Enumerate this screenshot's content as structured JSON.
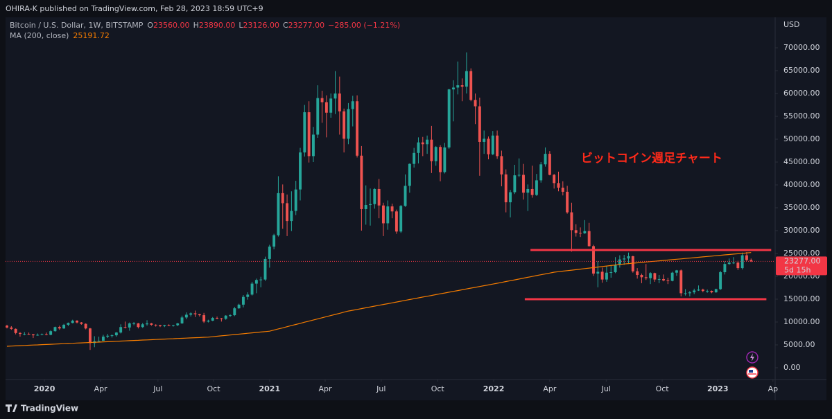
{
  "page": {
    "byline": "OHIRA-K published on TradingView.com, Feb 28, 2023 18:59 UTC+9",
    "brand": "TradingView"
  },
  "chart_data": {
    "type": "candlestick",
    "title": "Bitcoin / U.S. Dollar, 1W, BITSTAMP",
    "ohlc_legend": [
      {
        "label": "O",
        "value": "23560.00"
      },
      {
        "label": "H",
        "value": "23890.00"
      },
      {
        "label": "L",
        "value": "23126.00"
      },
      {
        "label": "C",
        "value": "23277.00"
      }
    ],
    "change": "−285.00 (−1.21%)",
    "currency": "USD",
    "annotation": "ビットコイン週足チャート",
    "up_color": "#26a69a",
    "down_color": "#ef5350",
    "open": [
      9200,
      8800,
      8500,
      7600,
      7400,
      7400,
      7300,
      7100,
      7200,
      7300,
      7200,
      8000,
      8900,
      8600,
      9400,
      9800,
      10300,
      9900,
      9600,
      8600,
      5400,
      5800,
      5900,
      6800,
      7000,
      7100,
      7700,
      8900,
      8800,
      9700,
      9700,
      8900,
      9500,
      9700,
      9400,
      9300,
      9100,
      9300,
      9200,
      9300,
      9700,
      11000,
      11600,
      11900,
      11700,
      11500,
      10100,
      10300,
      10900,
      10800,
      10700,
      11400,
      11500,
      13000,
      13800,
      15500,
      16000,
      18400,
      19200,
      19300,
      23800,
      26500,
      29000,
      38200,
      36000,
      32100,
      34300,
      39000,
      47100,
      55900,
      46300,
      51000,
      59000,
      58100,
      55800,
      58900,
      60000,
      56100,
      50100,
      56600,
      58300,
      46400,
      34700,
      35600,
      35800,
      39100,
      35500,
      31600,
      35300,
      34200,
      29800,
      35400,
      39800,
      44600,
      47000,
      49300,
      48900,
      49900,
      45200,
      48300,
      42800,
      48200,
      60900,
      61300,
      61800,
      61500,
      64900,
      58600,
      57200,
      49400,
      50100,
      46700,
      50800,
      46300,
      42300,
      36200,
      38400,
      42100,
      42200,
      38300,
      39100,
      37800,
      41000,
      44500,
      46800,
      42200,
      40400,
      39400,
      38500,
      34000,
      30100,
      29500,
      29400,
      29900,
      26600,
      20600,
      21000,
      19300,
      20800,
      20900,
      22500,
      23700,
      23900,
      24400,
      21100,
      20300,
      19800,
      19600,
      20700,
      19300,
      19400,
      19100,
      19000,
      20800,
      21300,
      16300,
      16300,
      16500,
      16900,
      17100,
      16800,
      16800,
      16500,
      17200,
      20900,
      22700,
      23000,
      23000,
      21800,
      24600,
      23560
    ],
    "high": [
      9400,
      9100,
      8600,
      7800,
      7800,
      7700,
      7400,
      7500,
      7500,
      7700,
      8200,
      9000,
      9200,
      9600,
      9900,
      10500,
      10400,
      10000,
      9700,
      8700,
      6900,
      6800,
      7200,
      7400,
      7300,
      7800,
      9500,
      10100,
      9900,
      10000,
      9800,
      9800,
      10400,
      9800,
      9500,
      9400,
      9400,
      9500,
      9400,
      9800,
      11400,
      12100,
      12100,
      12500,
      11800,
      12000,
      10500,
      11100,
      11200,
      10900,
      11500,
      11700,
      13300,
      14000,
      15900,
      16500,
      18800,
      19500,
      19900,
      24300,
      26900,
      29300,
      41900,
      40100,
      37900,
      38600,
      40900,
      48100,
      57500,
      58300,
      52700,
      61800,
      60600,
      59600,
      60000,
      64900,
      63700,
      56700,
      57900,
      59500,
      59600,
      48500,
      39900,
      39200,
      39300,
      41300,
      36100,
      36600,
      35900,
      34600,
      35600,
      42300,
      44700,
      48100,
      50400,
      50500,
      50800,
      52900,
      48500,
      48700,
      49200,
      61000,
      62900,
      67000,
      63300,
      69000,
      65500,
      60000,
      59100,
      51900,
      50600,
      51800,
      51900,
      47500,
      43400,
      38900,
      44400,
      45800,
      44600,
      40100,
      44200,
      42400,
      45000,
      48200,
      47400,
      42400,
      42900,
      40800,
      39800,
      36100,
      31400,
      30700,
      32300,
      31700,
      26900,
      23300,
      21900,
      22300,
      22500,
      24200,
      24600,
      24700,
      25200,
      24500,
      21800,
      20600,
      22700,
      20900,
      20800,
      20300,
      20400,
      19700,
      21000,
      21400,
      21500,
      17200,
      16800,
      17300,
      18000,
      17300,
      17100,
      16900,
      17300,
      21200,
      23300,
      23900,
      24200,
      23400,
      25200,
      25300,
      23890
    ],
    "low": [
      8600,
      8300,
      7300,
      6800,
      7100,
      7200,
      6500,
      7000,
      7100,
      7100,
      7100,
      7900,
      8300,
      8500,
      9100,
      9700,
      9700,
      9400,
      8400,
      3900,
      4500,
      5700,
      5900,
      6500,
      6600,
      6800,
      7500,
      8600,
      8100,
      9300,
      8600,
      8700,
      9200,
      9200,
      9000,
      8900,
      8900,
      9100,
      9000,
      9100,
      9600,
      10600,
      11200,
      11100,
      11200,
      9800,
      9900,
      10200,
      10600,
      10100,
      10500,
      11100,
      11300,
      12900,
      13200,
      14900,
      15800,
      16300,
      17600,
      19000,
      21900,
      25900,
      28700,
      30400,
      28800,
      29900,
      33400,
      36600,
      46200,
      44900,
      45000,
      50300,
      53600,
      50400,
      54700,
      55500,
      51000,
      47100,
      48900,
      52800,
      46000,
      30000,
      31300,
      31100,
      34800,
      32700,
      28800,
      30200,
      32700,
      29300,
      29500,
      35200,
      38300,
      43800,
      44700,
      46300,
      46800,
      42600,
      44200,
      40800,
      42500,
      47900,
      53900,
      59800,
      58300,
      60000,
      58300,
      53300,
      42000,
      46800,
      45600,
      46500,
      45700,
      39700,
      34000,
      32900,
      38000,
      41700,
      36800,
      34300,
      37200,
      37600,
      40500,
      44000,
      42100,
      39200,
      38600,
      37700,
      33700,
      25400,
      28700,
      28600,
      29300,
      26500,
      20100,
      17600,
      18600,
      18800,
      19700,
      20700,
      21900,
      22500,
      22700,
      20800,
      19500,
      18500,
      19200,
      18300,
      18800,
      18500,
      18900,
      18300,
      18900,
      20100,
      15600,
      15800,
      15600,
      16100,
      16800,
      16500,
      16400,
      16300,
      16400,
      17000,
      20400,
      22500,
      22700,
      21400,
      21500,
      23300,
      23126
    ],
    "close": [
      8800,
      8500,
      7600,
      7400,
      7400,
      7300,
      7100,
      7200,
      7300,
      7200,
      8000,
      8900,
      8600,
      9400,
      9800,
      10300,
      9900,
      9600,
      8600,
      5400,
      5800,
      5900,
      6800,
      7000,
      7100,
      7700,
      8900,
      8800,
      9700,
      9700,
      8900,
      9500,
      9700,
      9400,
      9300,
      9100,
      9300,
      9200,
      9300,
      9700,
      11000,
      11600,
      11900,
      11700,
      11500,
      10100,
      10300,
      10900,
      10800,
      10700,
      11400,
      11500,
      13000,
      13800,
      15500,
      16000,
      18400,
      19200,
      19300,
      23800,
      26500,
      29000,
      38200,
      36000,
      32100,
      34300,
      39000,
      47100,
      55900,
      46300,
      51000,
      59000,
      58100,
      55800,
      58900,
      60000,
      56100,
      50100,
      56600,
      58300,
      46400,
      34700,
      35600,
      35800,
      39100,
      35500,
      31600,
      35300,
      34200,
      29800,
      35400,
      39800,
      44600,
      47000,
      49300,
      48900,
      49900,
      45200,
      48300,
      42800,
      48200,
      60900,
      61300,
      61800,
      61500,
      64900,
      58600,
      57200,
      49400,
      50100,
      46700,
      50800,
      46300,
      42300,
      36200,
      38400,
      42100,
      42200,
      38300,
      39100,
      37800,
      41000,
      44500,
      46800,
      42200,
      40400,
      39400,
      38500,
      34000,
      30100,
      29500,
      29400,
      29900,
      26600,
      20600,
      21000,
      19300,
      20800,
      20900,
      22500,
      23700,
      23900,
      24400,
      21100,
      20300,
      19800,
      19600,
      20700,
      19300,
      19400,
      19100,
      19000,
      20800,
      21300,
      16300,
      16300,
      16500,
      16900,
      17100,
      16800,
      16800,
      16500,
      17200,
      20900,
      22700,
      23000,
      23000,
      21800,
      24600,
      23560,
      23277
    ],
    "series": [
      {
        "name": "MA (200, close)",
        "color": "#f57c00",
        "values": [
          4700,
          4740,
          4790,
          4830,
          4870,
          4920,
          4960,
          5000,
          5050,
          5090,
          5130,
          5180,
          5220,
          5270,
          5310,
          5350,
          5400,
          5440,
          5480,
          5530,
          5570,
          5610,
          5660,
          5700,
          5740,
          5790,
          5830,
          5870,
          5920,
          5960,
          6000,
          6050,
          6090,
          6130,
          6180,
          6220,
          6270,
          6310,
          6350,
          6400,
          6440,
          6480,
          6530,
          6570,
          6610,
          6660,
          6700,
          6790,
          6890,
          6980,
          7070,
          7160,
          7260,
          7350,
          7440,
          7540,
          7630,
          7720,
          7810,
          7910,
          8000,
          8240,
          8490,
          8730,
          8980,
          9220,
          9470,
          9710,
          9960,
          10200,
          10440,
          10690,
          10930,
          11180,
          11420,
          11670,
          11910,
          12160,
          12400,
          12580,
          12760,
          12940,
          13120,
          13300,
          13480,
          13660,
          13840,
          14020,
          14200,
          14380,
          14560,
          14740,
          14920,
          15100,
          15280,
          15460,
          15640,
          15820,
          16000,
          16180,
          16350,
          16530,
          16710,
          16880,
          17060,
          17240,
          17420,
          17590,
          17770,
          17950,
          18120,
          18300,
          18490,
          18670,
          18860,
          19040,
          19230,
          19410,
          19600,
          19790,
          19970,
          20160,
          20340,
          20530,
          20710,
          20900,
          21010,
          21130,
          21240,
          21350,
          21460,
          21580,
          21690,
          21800,
          21910,
          22030,
          22140,
          22250,
          22360,
          22480,
          22590,
          22700,
          22790,
          22870,
          22960,
          23040,
          23130,
          23220,
          23300,
          23390,
          23480,
          23560,
          23650,
          23740,
          23820,
          23910,
          23990,
          24080,
          24170,
          24250,
          24340,
          24430,
          24510,
          24600,
          24690,
          24770,
          24860,
          24940,
          25030,
          25120,
          25191.72
        ]
      }
    ],
    "last_price": {
      "value": 23277,
      "label": "23277.00"
    },
    "countdown": "5d 15h",
    "hline_color": "#f23645",
    "hlines": [
      {
        "value": 25760,
        "from": 119.6,
        "to": 174.6
      },
      {
        "value": 15000,
        "from": 118.3,
        "to": 173.5
      }
    ],
    "xlim": [
      -0.32,
      175.5
    ],
    "xticks": [
      {
        "value": 8.56,
        "label": "2020"
      },
      {
        "value": 21.4,
        "label": "Apr"
      },
      {
        "value": 34.5,
        "label": "Jul"
      },
      {
        "value": 47.2,
        "label": "Oct"
      },
      {
        "value": 60.0,
        "label": "2021"
      },
      {
        "value": 72.7,
        "label": "Apr"
      },
      {
        "value": 85.5,
        "label": "Jul"
      },
      {
        "value": 98.4,
        "label": "Oct"
      },
      {
        "value": 111.2,
        "label": "2022"
      },
      {
        "value": 124.0,
        "label": "Apr"
      },
      {
        "value": 136.9,
        "label": "Jul"
      },
      {
        "value": 149.7,
        "label": "Oct"
      },
      {
        "value": 162.4,
        "label": "2023"
      },
      {
        "value": 175.0,
        "label": "Ap"
      }
    ],
    "ylim": [
      -2580,
      76670
    ],
    "yticks": [
      {
        "value": 0,
        "label": "0.00"
      },
      {
        "value": 5000,
        "label": "5000.00"
      },
      {
        "value": 10000,
        "label": "10000.00"
      },
      {
        "value": 15000,
        "label": "15000.00"
      },
      {
        "value": 20000,
        "label": "20000.00"
      },
      {
        "value": 25000,
        "label": "25000.00"
      },
      {
        "value": 30000,
        "label": "30000.00"
      },
      {
        "value": 35000,
        "label": "35000.00"
      },
      {
        "value": 40000,
        "label": "40000.00"
      },
      {
        "value": 45000,
        "label": "45000.00"
      },
      {
        "value": 50000,
        "label": "50000.00"
      },
      {
        "value": 55000,
        "label": "55000.00"
      },
      {
        "value": 60000,
        "label": "60000.00"
      },
      {
        "value": 65000,
        "label": "65000.00"
      },
      {
        "value": 70000,
        "label": "70000.00"
      }
    ],
    "grid": false
  }
}
